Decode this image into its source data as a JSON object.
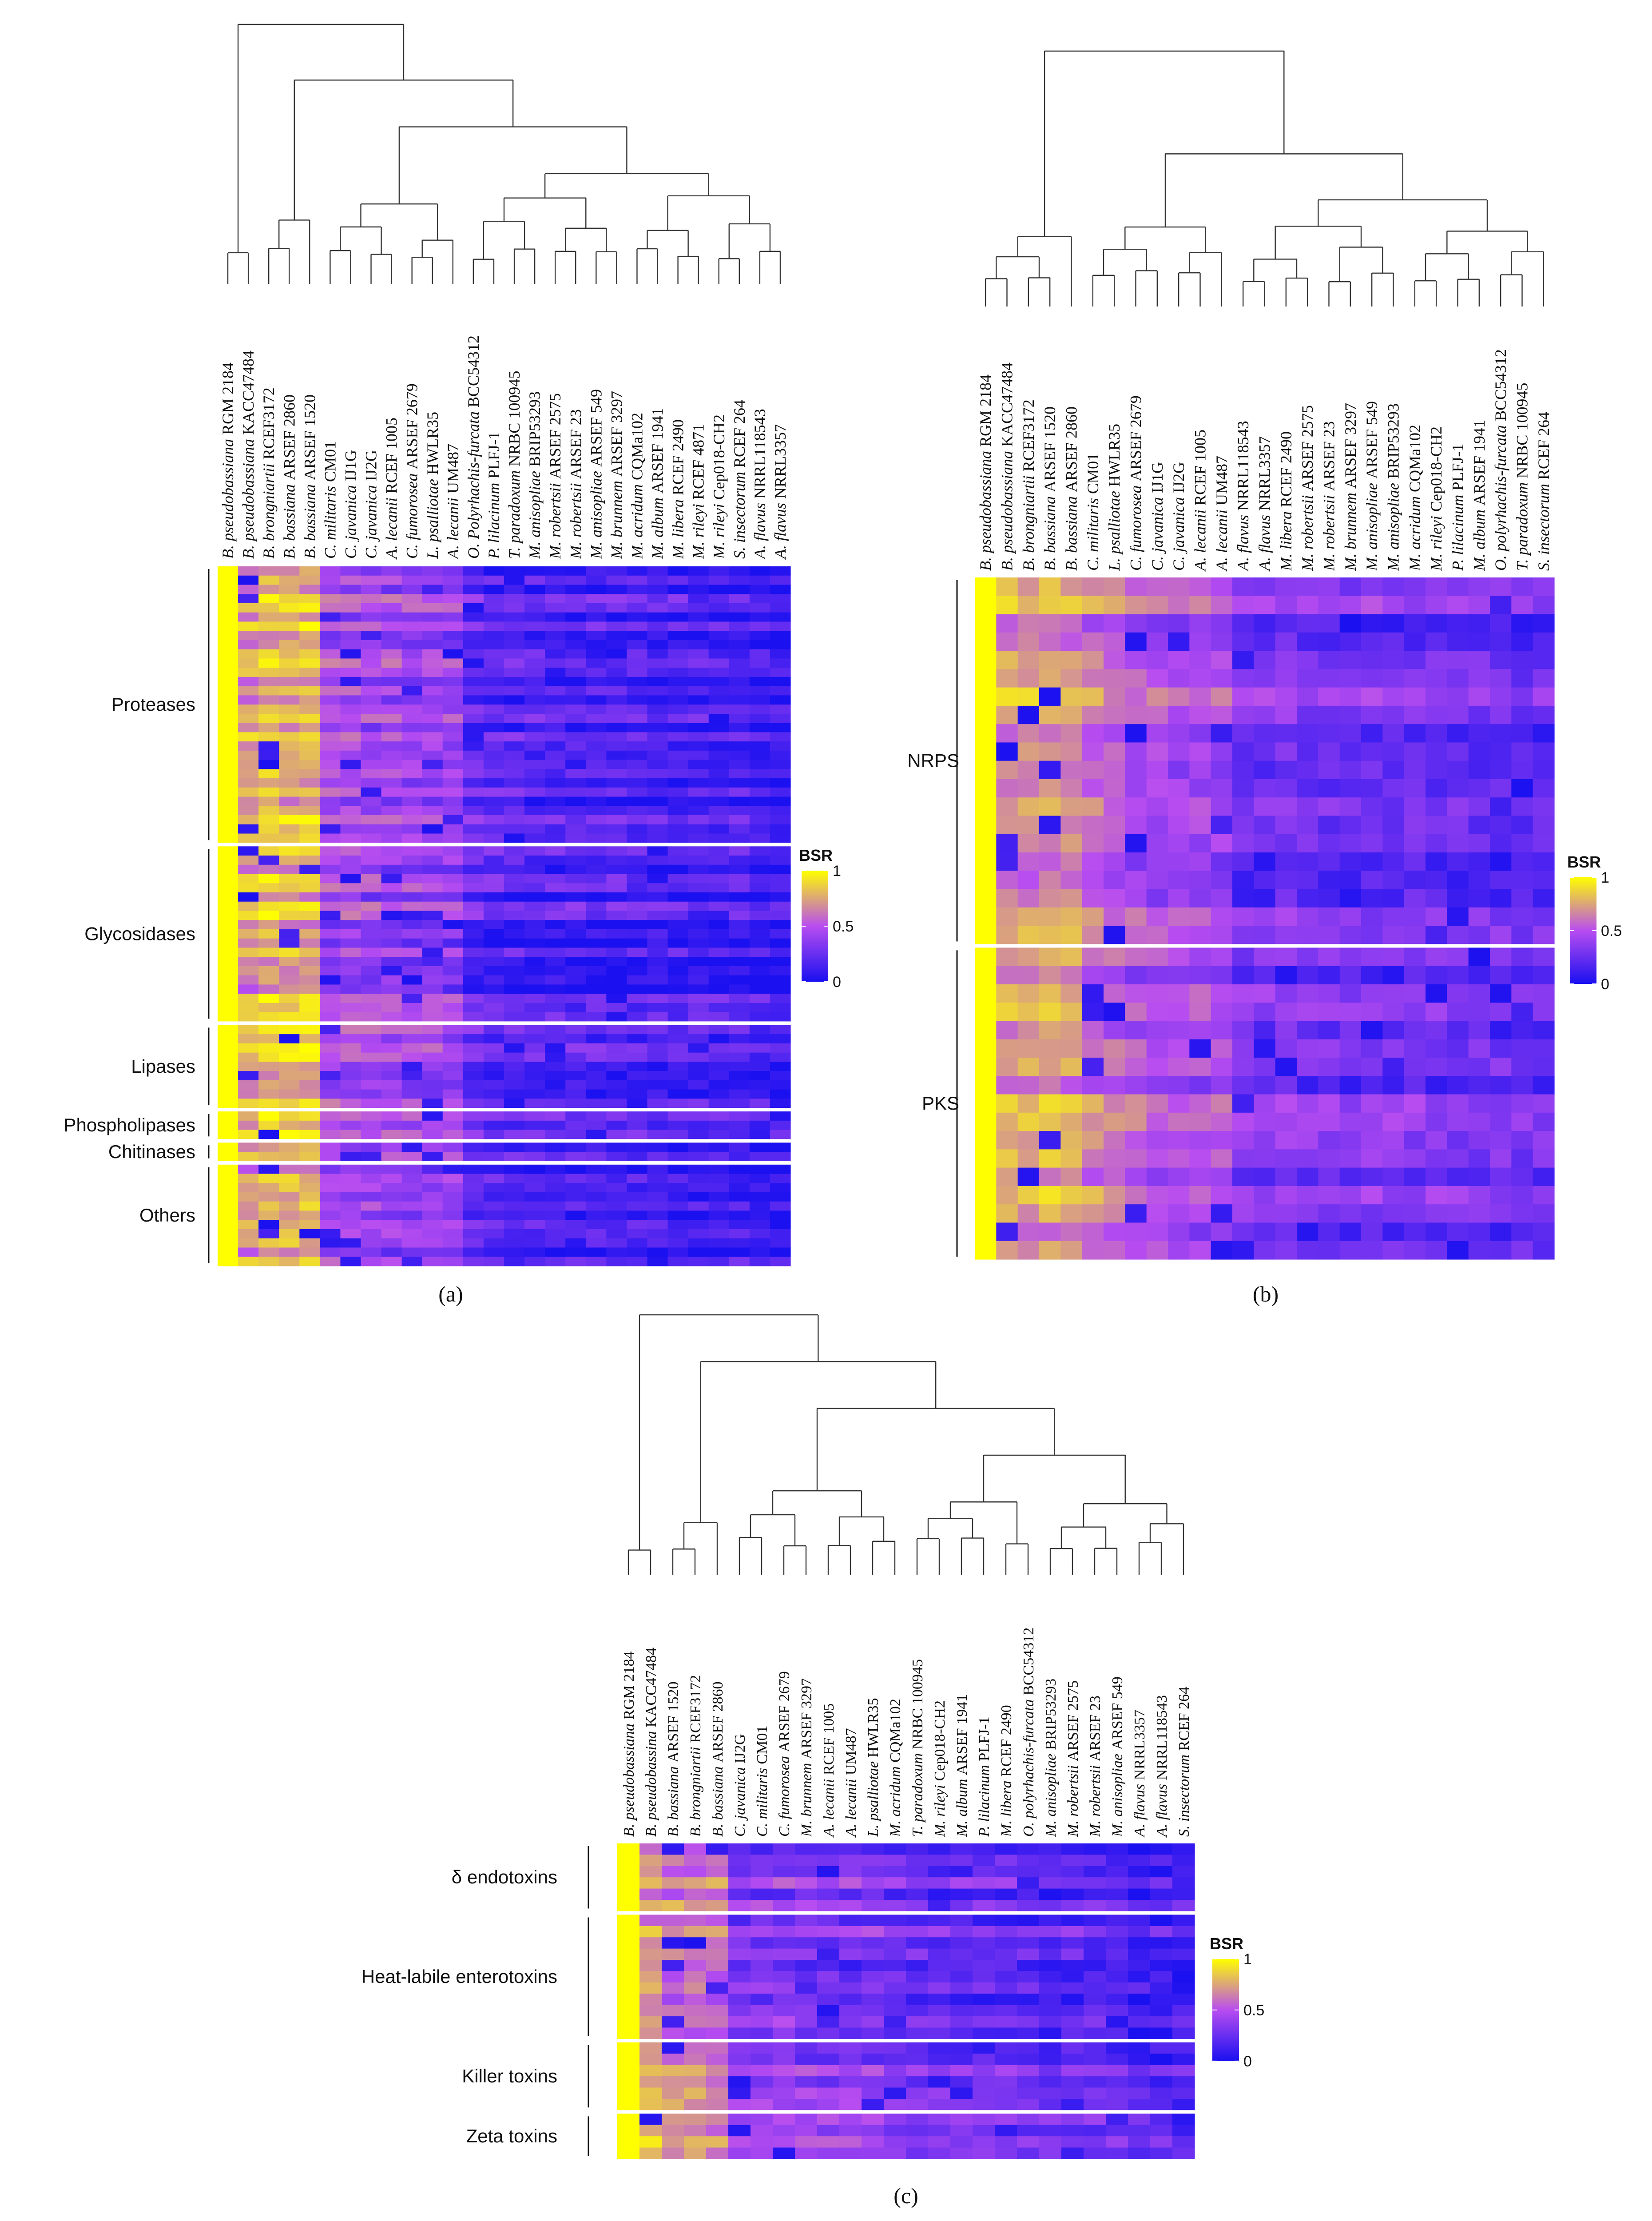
{
  "chart_data": [
    {
      "id": "a",
      "type": "heatmap",
      "panel_label": "(a)",
      "taxa": [
        {
          "genus": "B. pseudobassiana",
          "strain": "RGM 2184"
        },
        {
          "genus": "B. pseudobassiana",
          "strain": "KACC47484"
        },
        {
          "genus": "B. brongniartii",
          "strain": "RCEF3172"
        },
        {
          "genus": "B. bassiana",
          "strain": "ARSEF 2860"
        },
        {
          "genus": "B. bassiana",
          "strain": "ARSEF 1520"
        },
        {
          "genus": "C. militaris",
          "strain": "CM01"
        },
        {
          "genus": "C. javanica",
          "strain": "IJ1G"
        },
        {
          "genus": "C. javanica",
          "strain": "IJ2G"
        },
        {
          "genus": "A. lecanii",
          "strain": "RCEF 1005"
        },
        {
          "genus": "C. fumorosea",
          "strain": "ARSEF 2679"
        },
        {
          "genus": "L. psalliotae",
          "strain": "HWLR35"
        },
        {
          "genus": "A. lecanii",
          "strain": "UM487"
        },
        {
          "genus": "O. Polyrhachis-furcata",
          "strain": "BCC54312"
        },
        {
          "genus": "P. lilacinum",
          "strain": "PLFJ-1"
        },
        {
          "genus": "T. paradoxum",
          "strain": "NRBC 100945"
        },
        {
          "genus": "M. anisopliae",
          "strain": "BRIP53293"
        },
        {
          "genus": "M. robertsii",
          "strain": "ARSEF 2575"
        },
        {
          "genus": "M. robertsii",
          "strain": "ARSEF 23"
        },
        {
          "genus": "M. anisopliae",
          "strain": "ARSEF 549"
        },
        {
          "genus": "M. brunnem",
          "strain": "ARSEF 3297"
        },
        {
          "genus": "M. acridum",
          "strain": "CQMa102"
        },
        {
          "genus": "M. album",
          "strain": "ARSEF 1941"
        },
        {
          "genus": "M. libera",
          "strain": "RCEF 2490"
        },
        {
          "genus": "M. rileyi",
          "strain": "RCEF 4871"
        },
        {
          "genus": "M. rileyi",
          "strain": "Cep018-CH2"
        },
        {
          "genus": "S. insectorum",
          "strain": "RCEF 264"
        },
        {
          "genus": "A. flavus",
          "strain": "NRRL118543"
        },
        {
          "genus": "A. flavus",
          "strain": "NRRL3357"
        }
      ],
      "row_groups": [
        {
          "label": "Proteases",
          "rows": 30
        },
        {
          "label": "Glycosidases",
          "rows": 19
        },
        {
          "label": "Lipases",
          "rows": 9
        },
        {
          "label": "Phospholipases",
          "rows": 3
        },
        {
          "label": "Chitinases",
          "rows": 2
        },
        {
          "label": "Others",
          "rows": 11
        }
      ],
      "clusters": [
        [
          0,
          1
        ],
        [
          2,
          3,
          4
        ],
        [
          5,
          6,
          7,
          8,
          9,
          10,
          11
        ],
        [
          12,
          13,
          14,
          15,
          16,
          17,
          18,
          19,
          20,
          21,
          22,
          23,
          24,
          25,
          26,
          27
        ]
      ],
      "group_means": [
        1.0,
        0.72,
        0.8,
        0.78,
        0.78,
        0.45,
        0.45,
        0.42,
        0.42,
        0.4,
        0.4,
        0.38,
        0.22,
        0.18,
        0.18,
        0.17,
        0.16,
        0.16,
        0.15,
        0.15,
        0.14,
        0.14,
        0.13,
        0.13,
        0.12,
        0.12,
        0.1,
        0.1
      ]
    },
    {
      "id": "b",
      "type": "heatmap",
      "panel_label": "(b)",
      "taxa": [
        {
          "genus": "B. pseudobassiana",
          "strain": "RGM 2184"
        },
        {
          "genus": "B. pseudobassiana",
          "strain": "KACC47484"
        },
        {
          "genus": "B. brongniartii",
          "strain": "RCEF3172"
        },
        {
          "genus": "B. bassiana",
          "strain": "ARSEF 1520"
        },
        {
          "genus": "B. bassiana",
          "strain": "ARSEF 2860"
        },
        {
          "genus": "C. militaris",
          "strain": "CM01"
        },
        {
          "genus": "L. psalliotae",
          "strain": "HWLR35"
        },
        {
          "genus": "C. fumorosea",
          "strain": "ARSEF 2679"
        },
        {
          "genus": "C. javanica",
          "strain": "IJ1G"
        },
        {
          "genus": "C. javanica",
          "strain": "IJ2G"
        },
        {
          "genus": "A. lecanii",
          "strain": "RCEF 1005"
        },
        {
          "genus": "A. lecanii",
          "strain": "UM487"
        },
        {
          "genus": "A. flavus",
          "strain": "NRRL118543"
        },
        {
          "genus": "A. flavus",
          "strain": "NRRL3357"
        },
        {
          "genus": "M. libera",
          "strain": "RCEF 2490"
        },
        {
          "genus": "M. robertsii",
          "strain": "ARSEF 2575"
        },
        {
          "genus": "M. robertsii",
          "strain": "ARSEF 23"
        },
        {
          "genus": "M. brunnem",
          "strain": "ARSEF 3297"
        },
        {
          "genus": "M. anisopliae",
          "strain": "ARSEF 549"
        },
        {
          "genus": "M. anisopliae",
          "strain": "BRIP53293"
        },
        {
          "genus": "M. acridum",
          "strain": "CQMa102"
        },
        {
          "genus": "M. rileyi",
          "strain": "Cep018-CH2"
        },
        {
          "genus": "P. lilacinum",
          "strain": "PLFJ-1"
        },
        {
          "genus": "M. album",
          "strain": "ARSEF 1941"
        },
        {
          "genus": "O. polyrhachis-furcata",
          "strain": "BCC54312"
        },
        {
          "genus": "T. paradoxum",
          "strain": "NRBC 100945"
        },
        {
          "genus": "S. insectorum",
          "strain": "RCEF 264"
        }
      ],
      "row_groups": [
        {
          "label": "NRPS",
          "rows": 20
        },
        {
          "label": "PKS",
          "rows": 17
        }
      ],
      "clusters": [
        [
          0,
          1,
          2,
          3,
          4
        ],
        [
          5,
          6,
          7,
          8,
          9,
          10,
          11
        ],
        [
          12,
          13,
          14,
          15,
          16,
          17,
          18,
          19,
          20,
          21,
          22,
          23,
          24,
          25,
          26
        ]
      ],
      "group_means": [
        1.0,
        0.72,
        0.7,
        0.74,
        0.7,
        0.62,
        0.55,
        0.5,
        0.48,
        0.47,
        0.47,
        0.45,
        0.3,
        0.3,
        0.33,
        0.3,
        0.3,
        0.28,
        0.3,
        0.28,
        0.3,
        0.28,
        0.28,
        0.27,
        0.27,
        0.25,
        0.25
      ]
    },
    {
      "id": "c",
      "type": "heatmap",
      "panel_label": "(c)",
      "taxa": [
        {
          "genus": "B. pseudobassiana",
          "strain": "RGM 2184"
        },
        {
          "genus": "B. pseudobassina",
          "strain": "KACC47484"
        },
        {
          "genus": "B. bassiana",
          "strain": "ARSEF 1520"
        },
        {
          "genus": "B. brongniartii",
          "strain": "RCEF3172"
        },
        {
          "genus": "B. bassiana",
          "strain": "ARSEF 2860"
        },
        {
          "genus": "C. javanica",
          "strain": "IJ2G"
        },
        {
          "genus": "C. militaris",
          "strain": "CM01"
        },
        {
          "genus": "C. fumorosea",
          "strain": "ARSEF 2679"
        },
        {
          "genus": "M. brunnem",
          "strain": "ARSEF 3297"
        },
        {
          "genus": "A. lecanii",
          "strain": "RCEF 1005"
        },
        {
          "genus": "A. lecanii",
          "strain": "UM487"
        },
        {
          "genus": "L. psalliotae",
          "strain": "HWLR35"
        },
        {
          "genus": "M. acridum",
          "strain": "CQMa102"
        },
        {
          "genus": "T. paradoxum",
          "strain": "NRBC 100945"
        },
        {
          "genus": "M. rileyi",
          "strain": "Cep018-CH2"
        },
        {
          "genus": "M. album",
          "strain": "ARSEF 1941"
        },
        {
          "genus": "P. lilacinum",
          "strain": "PLFJ-1"
        },
        {
          "genus": "M. libera",
          "strain": "RCEF 2490"
        },
        {
          "genus": "O. polyrhachis-furcata",
          "strain": "BCC54312"
        },
        {
          "genus": "M. anisopliae",
          "strain": "BRIP53293"
        },
        {
          "genus": "M. robertsii",
          "strain": "ARSEF 2575"
        },
        {
          "genus": "M. robertsii",
          "strain": "ARSEF 23"
        },
        {
          "genus": "M. anisopliae",
          "strain": "ARSEF 549"
        },
        {
          "genus": "A. flavus",
          "strain": "NRRL3357"
        },
        {
          "genus": "A. flavus",
          "strain": "NRRL118543"
        },
        {
          "genus": "S. insectorum",
          "strain": "RCEF 264"
        }
      ],
      "row_groups": [
        {
          "label": "δ endotoxins",
          "rows": 6
        },
        {
          "label": "Heat-labile enterotoxins",
          "rows": 11
        },
        {
          "label": "Killer toxins",
          "rows": 6
        },
        {
          "label": "Zeta toxins",
          "rows": 4
        }
      ],
      "clusters": [
        [
          0,
          1
        ],
        [
          2,
          3,
          4
        ],
        [
          5,
          6,
          7,
          8,
          9,
          10,
          11,
          12
        ],
        [
          13,
          14,
          15,
          16,
          17,
          18
        ],
        [
          19,
          20,
          21,
          22,
          23,
          24,
          25
        ]
      ],
      "group_means": [
        1.0,
        0.72,
        0.62,
        0.62,
        0.6,
        0.35,
        0.35,
        0.36,
        0.35,
        0.33,
        0.33,
        0.32,
        0.3,
        0.25,
        0.25,
        0.25,
        0.25,
        0.25,
        0.22,
        0.22,
        0.22,
        0.22,
        0.2,
        0.15,
        0.15,
        0.15
      ]
    }
  ],
  "legend": {
    "title": "BSR",
    "ticks": [
      1,
      0.5,
      0
    ],
    "tick_labels": [
      "1",
      "0.5",
      "0"
    ],
    "color_low": "#1a10f0",
    "color_mid": "#b84df0",
    "color_high": "#ffff00",
    "range": [
      0,
      1
    ]
  }
}
